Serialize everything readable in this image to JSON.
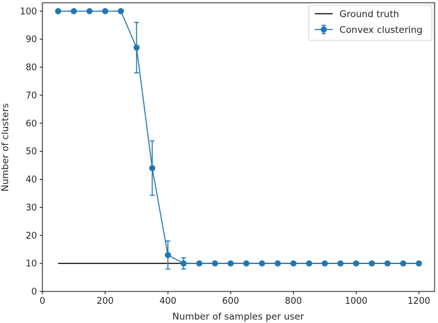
{
  "chart_data": {
    "type": "line",
    "title": "",
    "xlabel": "Number of samples per user",
    "ylabel": "Number of clusters",
    "xlim": [
      0,
      1250
    ],
    "ylim": [
      0,
      103
    ],
    "xticks": [
      0,
      200,
      400,
      600,
      800,
      1000,
      1200
    ],
    "yticks": [
      0,
      10,
      20,
      30,
      40,
      50,
      60,
      70,
      80,
      90,
      100
    ],
    "grid": false,
    "legend_position": "top-right",
    "series": [
      {
        "name": "Ground truth",
        "kind": "line",
        "color": "#000000",
        "x": [
          50,
          1200
        ],
        "y": [
          10,
          10
        ]
      },
      {
        "name": "Convex clustering",
        "kind": "line-errorbar",
        "color": "#1f77b4",
        "marker": "circle",
        "x": [
          50,
          100,
          150,
          200,
          250,
          300,
          350,
          400,
          450,
          500,
          550,
          600,
          650,
          700,
          750,
          800,
          850,
          900,
          950,
          1000,
          1050,
          1100,
          1150,
          1200
        ],
        "y": [
          100,
          100,
          100,
          100,
          100,
          87,
          44,
          13,
          10,
          10,
          10,
          10,
          10,
          10,
          10,
          10,
          10,
          10,
          10,
          10,
          10,
          10,
          10,
          10
        ],
        "error": [
          0,
          0,
          0,
          0,
          0,
          9,
          9.7,
          5,
          2,
          0,
          0,
          0,
          0,
          0,
          0,
          0,
          0,
          0,
          0,
          0,
          0,
          0,
          0,
          0
        ]
      }
    ]
  }
}
